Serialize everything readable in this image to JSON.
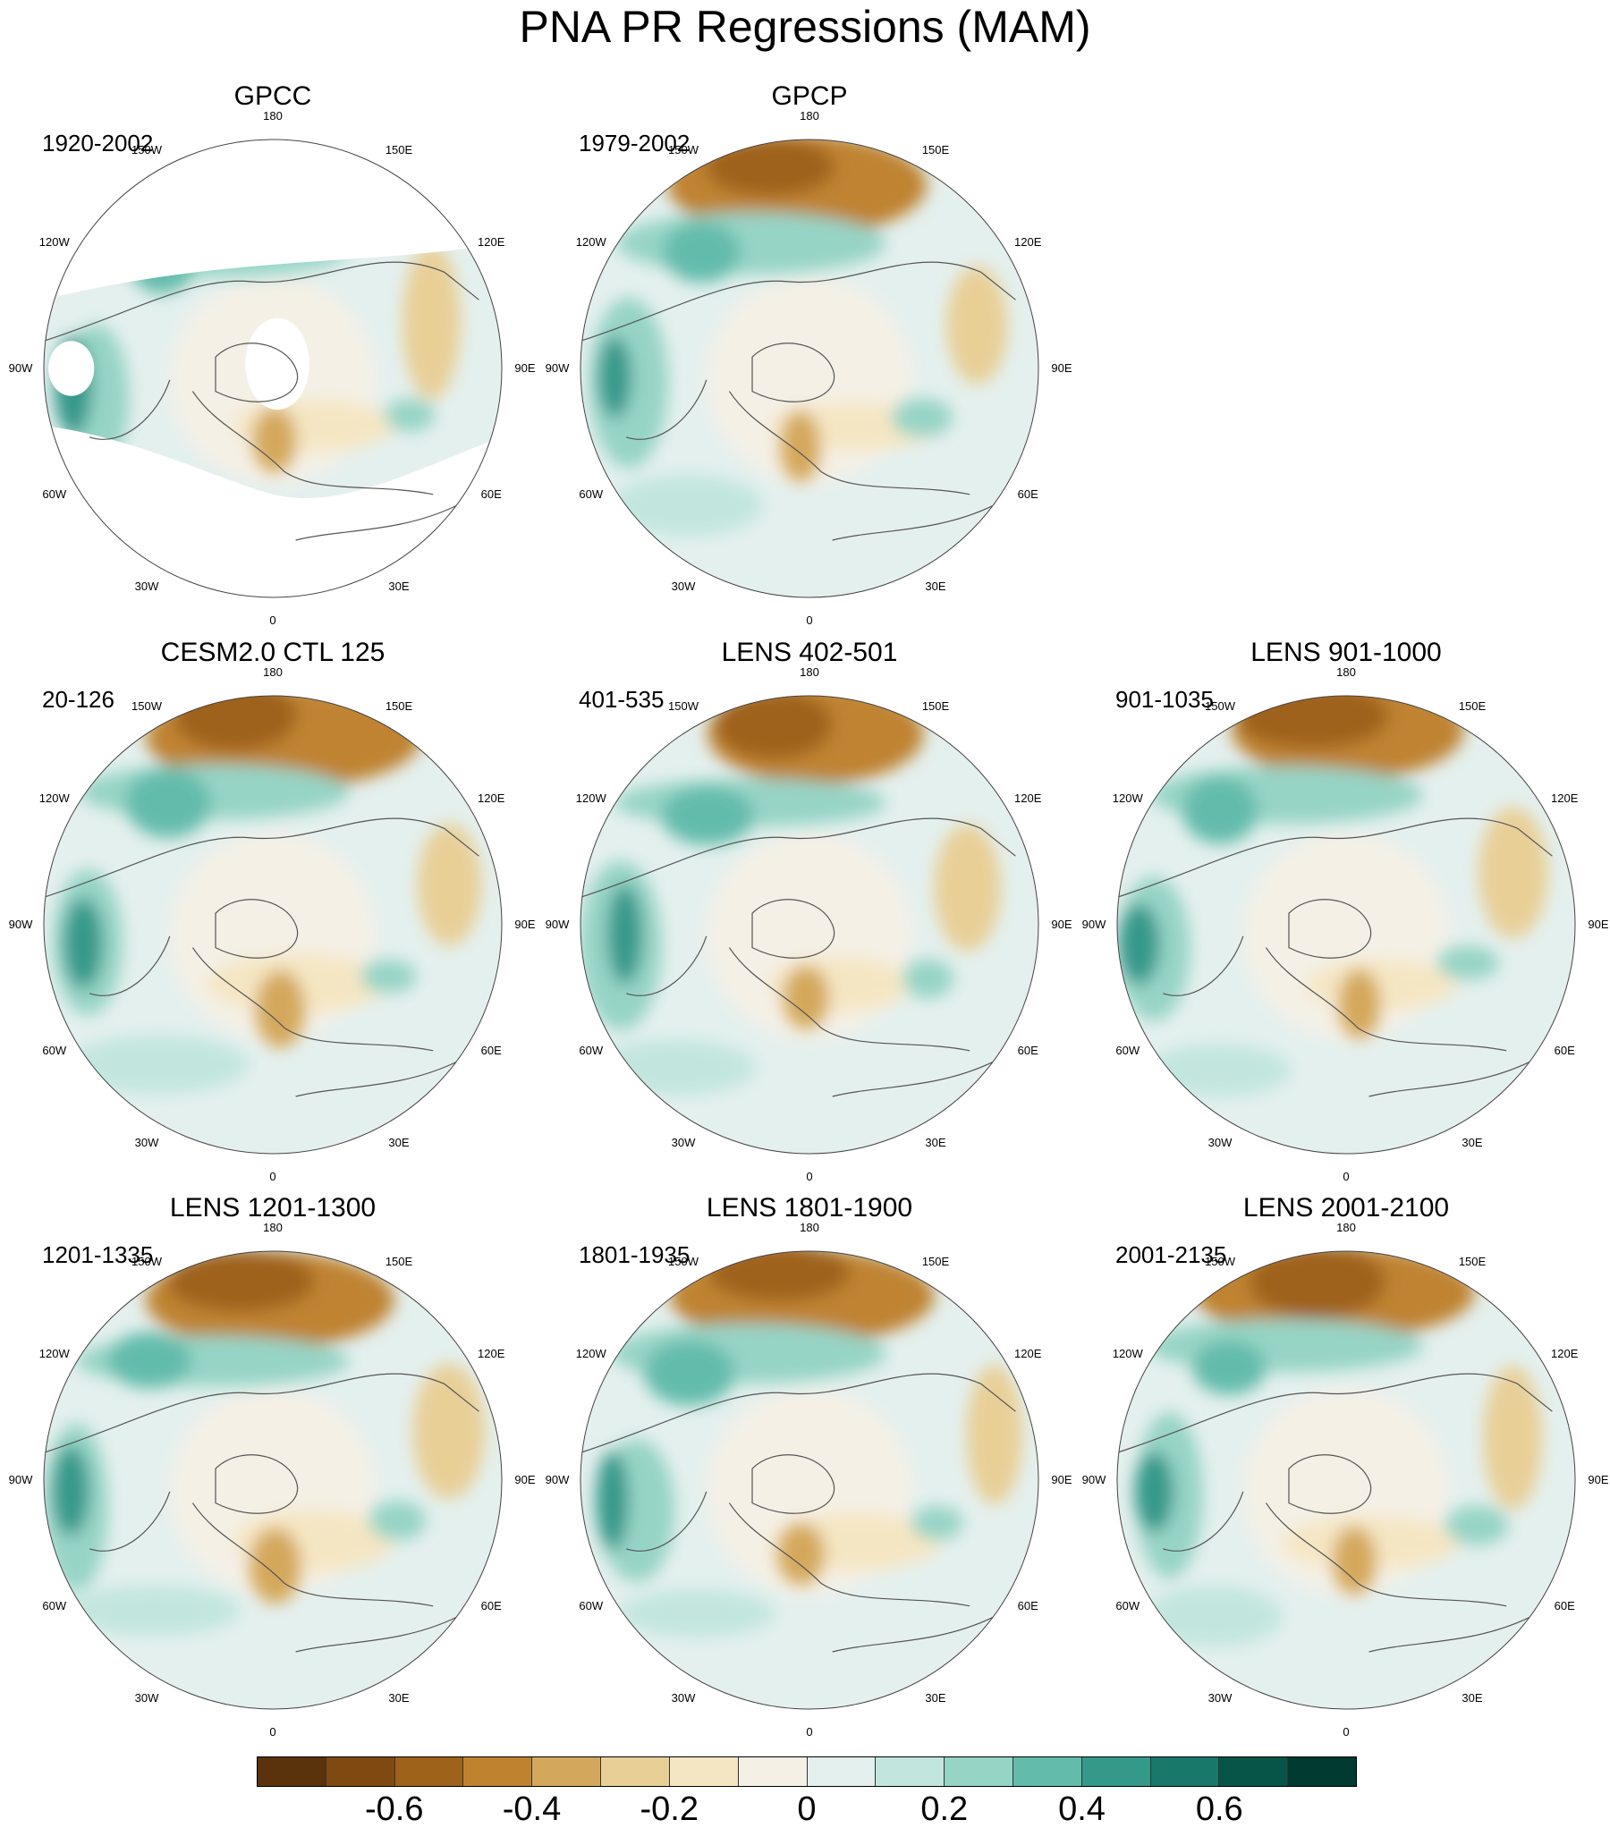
{
  "title": "PNA PR Regressions (MAM)",
  "lon_labels": [
    "180",
    "150E",
    "120E",
    "90E",
    "60E",
    "30E",
    "0",
    "30W",
    "60W",
    "90W",
    "120W",
    "150W"
  ],
  "panels": [
    {
      "title": "GPCC",
      "period": "1920-2002",
      "blank_region": true
    },
    {
      "title": "GPCP",
      "period": "1979-2002",
      "blank_region": false
    },
    {
      "title": "CESM2.0 CTL 125",
      "period": "20-126",
      "blank_region": false
    },
    {
      "title": "LENS 402-501",
      "period": "401-535",
      "blank_region": false
    },
    {
      "title": "LENS 901-1000",
      "period": "901-1035",
      "blank_region": false
    },
    {
      "title": "LENS 1201-1300",
      "period": "1201-1335",
      "blank_region": false
    },
    {
      "title": "LENS 1801-1900",
      "period": "1801-1935",
      "blank_region": false
    },
    {
      "title": "LENS 2001-2100",
      "period": "2001-2135",
      "blank_region": false
    }
  ],
  "colorbar": {
    "colors": [
      "#5a320b",
      "#7f4a12",
      "#9f621b",
      "#bf8330",
      "#d4a85c",
      "#e8cf96",
      "#f5e6c3",
      "#f4f0e6",
      "#e4f0ee",
      "#c2e6de",
      "#96d4c6",
      "#63bcab",
      "#35998a",
      "#187869",
      "#075548",
      "#003a30"
    ],
    "labels": [
      "-0.6",
      "-0.4",
      "-0.2",
      "0",
      "0.2",
      "0.4",
      "0.6"
    ]
  }
}
